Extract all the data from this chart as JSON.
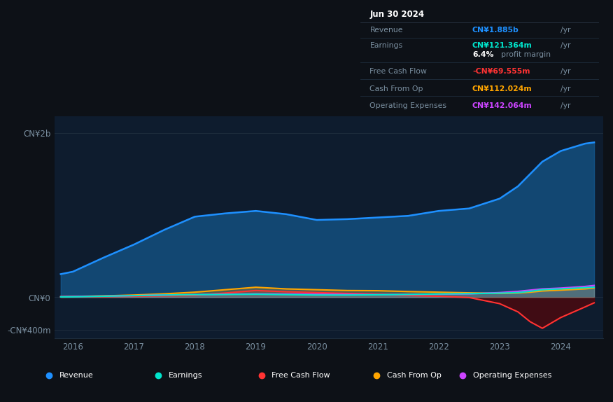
{
  "background_color": "#0d1117",
  "plot_bg_color": "#0e1c2e",
  "years": [
    2015.8,
    2016.0,
    2016.5,
    2017.0,
    2017.5,
    2018.0,
    2018.5,
    2019.0,
    2019.5,
    2020.0,
    2020.5,
    2021.0,
    2021.5,
    2022.0,
    2022.5,
    2023.0,
    2023.3,
    2023.5,
    2023.7,
    2024.0,
    2024.4,
    2024.55
  ],
  "revenue": [
    280,
    310,
    480,
    640,
    820,
    980,
    1020,
    1050,
    1010,
    940,
    950,
    970,
    990,
    1050,
    1080,
    1200,
    1350,
    1500,
    1650,
    1780,
    1870,
    1885
  ],
  "earnings": [
    2,
    3,
    10,
    18,
    25,
    30,
    32,
    35,
    30,
    25,
    25,
    28,
    32,
    38,
    42,
    48,
    55,
    70,
    90,
    100,
    115,
    121
  ],
  "free_cash_flow": [
    0,
    2,
    5,
    10,
    15,
    20,
    50,
    80,
    65,
    55,
    45,
    35,
    20,
    10,
    -5,
    -80,
    -180,
    -300,
    -380,
    -250,
    -120,
    -70
  ],
  "cash_from_op": [
    5,
    8,
    15,
    25,
    40,
    60,
    90,
    120,
    100,
    90,
    80,
    78,
    68,
    60,
    52,
    45,
    50,
    60,
    75,
    85,
    100,
    112
  ],
  "operating_expenses": [
    5,
    7,
    12,
    18,
    25,
    30,
    35,
    40,
    37,
    35,
    33,
    30,
    32,
    35,
    40,
    55,
    70,
    85,
    100,
    110,
    130,
    142
  ],
  "revenue_color": "#1e90ff",
  "revenue_fill_color": "#1565a0",
  "earnings_color": "#00e5cc",
  "free_cash_flow_color": "#ff3333",
  "free_cash_flow_fill_neg_color": "#6b0000",
  "cash_from_op_color": "#ffa500",
  "operating_expenses_color": "#cc44ff",
  "ylim_min": -500,
  "ylim_max": 2200,
  "ytick_vals": [
    2000,
    0,
    -400
  ],
  "ylabel_top": "CN¥2b",
  "ylabel_zero": "CN¥0",
  "ylabel_neg": "-CN¥400m",
  "grid_color": "#1e2d3d",
  "text_color": "#7a8fa0",
  "xtick_years": [
    2016,
    2017,
    2018,
    2019,
    2020,
    2021,
    2022,
    2023,
    2024
  ],
  "info_box": {
    "date": "Jun 30 2024",
    "revenue_label": "Revenue",
    "revenue_val": "CN¥1.885b",
    "earnings_label": "Earnings",
    "earnings_val": "CN¥121.364m",
    "profit_margin_val": "6.4%",
    "profit_margin_label": "profit margin",
    "fcf_label": "Free Cash Flow",
    "fcf_val": "-CN¥69.555m",
    "cash_op_label": "Cash From Op",
    "cash_op_val": "CN¥112.024m",
    "op_exp_label": "Operating Expenses",
    "op_exp_val": "CN¥142.064m"
  },
  "legend_items": [
    {
      "label": "Revenue",
      "color": "#1e90ff"
    },
    {
      "label": "Earnings",
      "color": "#00e5cc"
    },
    {
      "label": "Free Cash Flow",
      "color": "#ff3333"
    },
    {
      "label": "Cash From Op",
      "color": "#ffa500"
    },
    {
      "label": "Operating Expenses",
      "color": "#cc44ff"
    }
  ]
}
